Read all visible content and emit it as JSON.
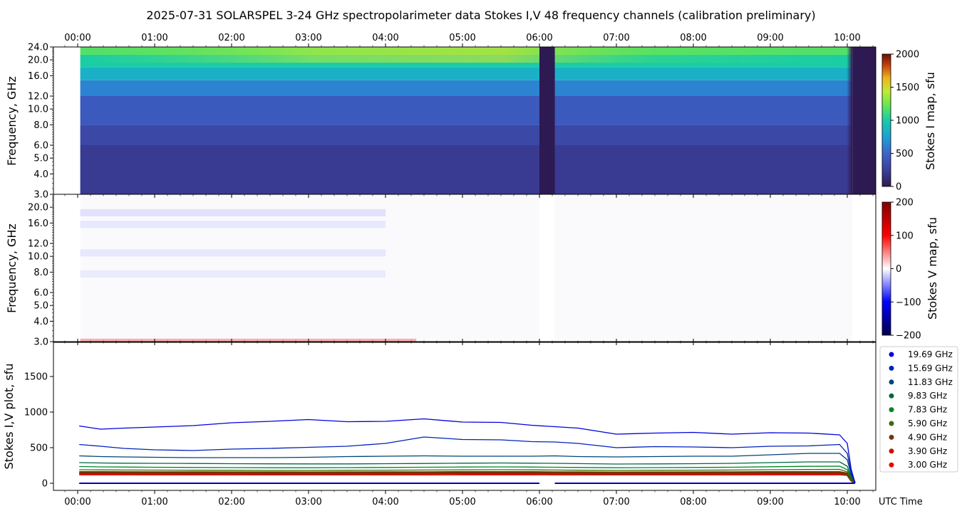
{
  "title": "2025-07-31  SOLARSPEL  3-24 GHz spectropolarimeter data   Stokes I,V   48 frequency channels   (calibration preliminary)",
  "colors": {
    "stokes_i_colormap": [
      "#2e1a52",
      "#3a3e99",
      "#3d64cc",
      "#1c9fd6",
      "#17ccaa",
      "#6ae84c",
      "#c1eb34",
      "#f0b21c",
      "#c23d0b",
      "#6b0d06"
    ],
    "stokes_v_colormap": [
      "#00004c",
      "#0000ff",
      "#ffffff",
      "#ff0000",
      "#800000"
    ]
  },
  "chart_data": [
    {
      "type": "heatmap",
      "name": "stokes_i_map",
      "x_ticks": [
        "00:00",
        "01:00",
        "02:00",
        "03:00",
        "04:00",
        "05:00",
        "06:00",
        "07:00",
        "08:00",
        "09:00",
        "10:00"
      ],
      "x_tick_position": "top",
      "ylabel": "Frequency, GHz",
      "y_ticks": [
        "3.0",
        "4.0",
        "5.0",
        "6.0",
        "8.0",
        "10.0",
        "12.0",
        "16.0",
        "20.0",
        "24.0"
      ],
      "y_scale": "log",
      "ylim": [
        3.0,
        24.0
      ],
      "colorbar": {
        "label": "Stokes I map, sfu",
        "range": [
          0,
          2000
        ],
        "ticks": [
          "0",
          "500",
          "1000",
          "1500",
          "2000"
        ]
      },
      "data_start": "00:02",
      "gap": [
        "06:00",
        "06:12"
      ],
      "data_end": "10:04",
      "bands": [
        {
          "freq_range": [
            3.0,
            6.0
          ],
          "stokes_i": 200
        },
        {
          "freq_range": [
            6.0,
            8.0
          ],
          "stokes_i": 280
        },
        {
          "freq_range": [
            8.0,
            12.0
          ],
          "stokes_i": 380
        },
        {
          "freq_range": [
            12.0,
            15.0
          ],
          "stokes_i": 560
        },
        {
          "freq_range": [
            15.0,
            18.0
          ],
          "stokes_i": 750
        },
        {
          "freq_range": [
            18.0,
            21.5
          ],
          "stokes_i": 900
        },
        {
          "freq_range": [
            21.5,
            24.0
          ],
          "stokes_i": 1050
        }
      ]
    },
    {
      "type": "heatmap",
      "name": "stokes_v_map",
      "ylabel": "Frequency, GHz",
      "y_ticks": [
        "3.0",
        "4.0",
        "5.0",
        "6.0",
        "8.0",
        "10.0",
        "12.0",
        "16.0",
        "20.0"
      ],
      "y_scale": "log",
      "ylim": [
        3.0,
        24.0
      ],
      "colorbar": {
        "label": "Stokes V map, sfu",
        "range": [
          -200,
          200
        ],
        "ticks": [
          "−200",
          "−100",
          "0",
          "100",
          "200"
        ]
      },
      "bands": [
        {
          "freq": 18.5,
          "stokes_v": -20
        },
        {
          "freq": 15.7,
          "stokes_v": -15
        },
        {
          "freq": 10.5,
          "stokes_v": -15
        },
        {
          "freq": 7.8,
          "stokes_v": -12
        },
        {
          "freq": 3.05,
          "stokes_v": 60
        }
      ]
    },
    {
      "type": "line",
      "name": "stokes_iv_plot",
      "ylabel": "Stokes I,V plot, sfu",
      "xlabel": "UTC Time",
      "x_ticks": [
        "00:00",
        "01:00",
        "02:00",
        "03:00",
        "04:00",
        "05:00",
        "06:00",
        "07:00",
        "08:00",
        "09:00",
        "10:00"
      ],
      "y_ticks": [
        "0",
        "500",
        "1000",
        "1500"
      ],
      "ylim": [
        -100,
        1980
      ],
      "legend_position": "right",
      "x_hours": [
        0.02,
        0.3,
        0.6,
        1.0,
        1.5,
        2.0,
        2.5,
        3.0,
        3.5,
        4.0,
        4.5,
        5.0,
        5.5,
        5.9,
        6.2,
        6.5,
        7.0,
        7.5,
        8.0,
        8.5,
        9.0,
        9.5,
        9.9,
        10.0,
        10.05,
        10.1
      ],
      "series": [
        {
          "name": "19.69 GHz",
          "color": "#0000dd",
          "values": [
            805,
            760,
            775,
            790,
            810,
            850,
            870,
            895,
            865,
            870,
            905,
            860,
            855,
            815,
            795,
            775,
            690,
            705,
            715,
            690,
            710,
            705,
            680,
            560,
            200,
            10
          ]
        },
        {
          "name": "15.69 GHz",
          "color": "#0022bb",
          "values": [
            545,
            520,
            490,
            470,
            460,
            480,
            490,
            505,
            520,
            560,
            650,
            615,
            610,
            585,
            580,
            560,
            500,
            515,
            510,
            500,
            520,
            525,
            545,
            420,
            150,
            8
          ]
        },
        {
          "name": "11.83 GHz",
          "color": "#004477",
          "values": [
            385,
            375,
            370,
            365,
            360,
            360,
            360,
            365,
            375,
            380,
            385,
            380,
            380,
            380,
            385,
            375,
            370,
            375,
            380,
            380,
            400,
            420,
            420,
            330,
            120,
            6
          ]
        },
        {
          "name": "9.83 GHz",
          "color": "#006644",
          "values": [
            290,
            285,
            282,
            280,
            278,
            275,
            273,
            272,
            272,
            275,
            278,
            282,
            285,
            282,
            280,
            276,
            270,
            272,
            275,
            280,
            290,
            300,
            300,
            240,
            90,
            5
          ]
        },
        {
          "name": "7.83 GHz",
          "color": "#008822",
          "values": [
            235,
            230,
            228,
            225,
            222,
            220,
            218,
            218,
            220,
            222,
            225,
            228,
            230,
            228,
            225,
            222,
            218,
            220,
            222,
            225,
            232,
            238,
            240,
            190,
            75,
            4
          ]
        },
        {
          "name": "5.90 GHz",
          "color": "#446600",
          "values": [
            190,
            188,
            186,
            185,
            183,
            182,
            180,
            180,
            182,
            184,
            186,
            188,
            190,
            188,
            186,
            183,
            180,
            182,
            184,
            186,
            190,
            193,
            195,
            160,
            60,
            4
          ]
        },
        {
          "name": "4.90 GHz",
          "color": "#773300",
          "values": [
            150,
            150,
            149,
            148,
            147,
            146,
            146,
            145,
            146,
            147,
            148,
            150,
            150,
            150,
            148,
            146,
            144,
            145,
            146,
            148,
            150,
            150,
            150,
            130,
            50,
            3
          ]
        },
        {
          "name": "3.90 GHz",
          "color": "#cc1100",
          "values": [
            130,
            130,
            130,
            129,
            128,
            128,
            127,
            127,
            127,
            128,
            129,
            130,
            130,
            130,
            129,
            128,
            127,
            127,
            128,
            129,
            130,
            130,
            130,
            115,
            70,
            5
          ]
        },
        {
          "name": "3.00 GHz",
          "color": "#ee0000",
          "values": [
            118,
            118,
            118,
            117,
            117,
            116,
            116,
            116,
            116,
            117,
            117,
            118,
            118,
            118,
            117,
            116,
            116,
            116,
            117,
            117,
            118,
            118,
            118,
            110,
            80,
            10
          ]
        }
      ],
      "stokes_v_series": {
        "color": "#0000cc",
        "values_range": [
          -20,
          20
        ]
      }
    }
  ]
}
